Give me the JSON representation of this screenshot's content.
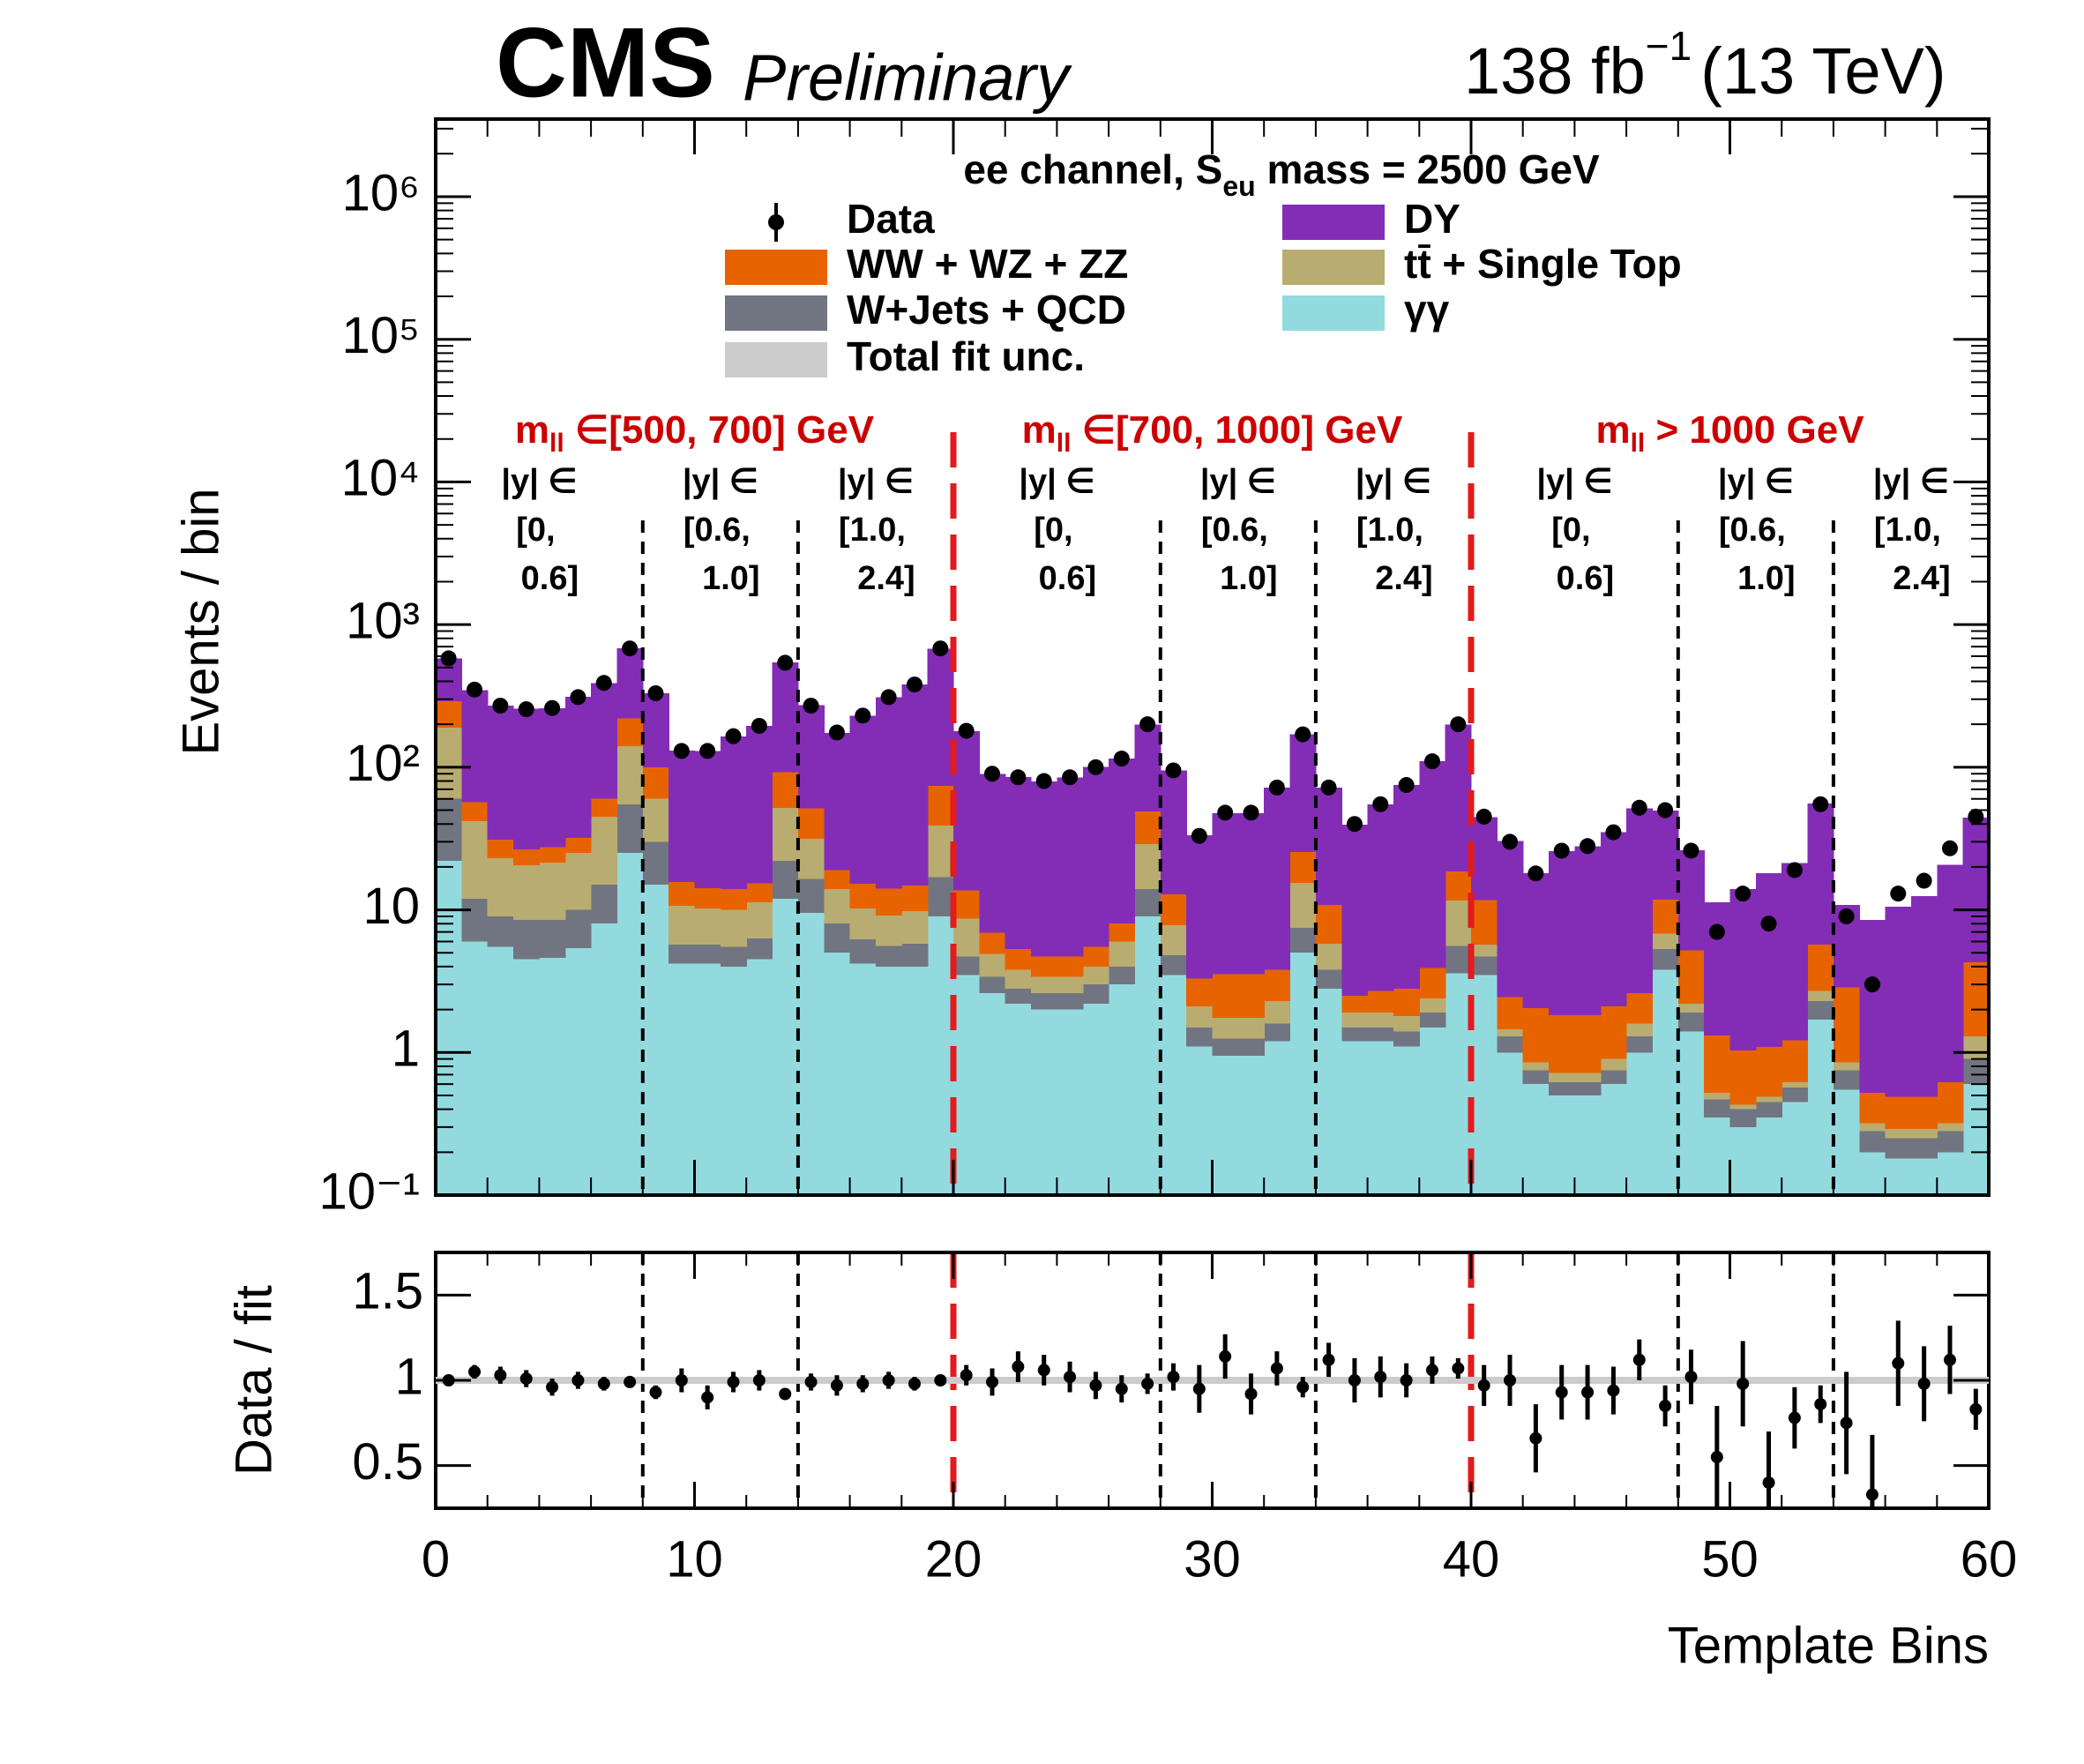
{
  "chart_data": [
    {
      "type": "stacked_histogram",
      "title": "CMS",
      "subtitle": "Preliminary",
      "lumi": "138 fb",
      "lumi_exp": "−1",
      "energy": "(13 TeV)",
      "legend_title": {
        "text": "ee channel, S",
        "sub": "eu",
        "rest": " mass = 2500 GeV"
      },
      "ylabel": "Events / bin",
      "log_scale": true,
      "ylim": [
        0.1,
        3500000
      ],
      "yticks": [
        {
          "value": 0.1,
          "label": "10⁻¹"
        },
        1,
        10,
        {
          "value": 100,
          "label": "10²"
        },
        {
          "value": 1000,
          "label": "10³"
        },
        {
          "value": 10000,
          "label": "10⁴"
        },
        {
          "value": 100000,
          "label": "10⁵"
        },
        {
          "value": 1000000,
          "label": "10⁶"
        }
      ],
      "xlim": [
        0,
        60
      ],
      "bins": [
        0,
        1,
        2,
        3,
        4,
        5,
        6,
        7,
        8,
        9,
        10,
        11,
        12,
        13,
        14,
        15,
        16,
        17,
        18,
        19,
        20,
        21,
        22,
        23,
        24,
        25,
        26,
        27,
        28,
        29,
        30,
        31,
        32,
        33,
        34,
        35,
        36,
        37,
        38,
        39,
        40,
        41,
        42,
        43,
        44,
        45,
        46,
        47,
        48,
        49,
        50,
        51,
        52,
        53,
        54,
        55,
        56,
        57,
        58,
        59,
        60
      ],
      "series": [
        {
          "name": "γγ",
          "color": "#93dadf",
          "values": [
            22,
            6,
            5.5,
            4.5,
            4.6,
            5.4,
            8,
            25,
            15,
            4.2,
            4.2,
            4,
            4.5,
            12,
            9.5,
            5,
            4.2,
            4,
            4,
            9,
            3.5,
            2.6,
            2.2,
            2,
            2,
            2.2,
            3,
            9,
            3.5,
            1.1,
            0.95,
            0.95,
            1.2,
            5,
            2.8,
            1.2,
            1.2,
            1.1,
            1.5,
            3.6,
            3.5,
            1,
            0.6,
            0.5,
            0.5,
            0.6,
            1,
            3.8,
            1.4,
            0.35,
            0.3,
            0.35,
            0.45,
            1.7,
            0.55,
            0.2,
            0.18,
            0.18,
            0.2,
            0.6
          ]
        },
        {
          "name": "W+Jets + QCD",
          "color": "#717581",
          "values": [
            38,
            6,
            3.5,
            4,
            3.9,
            4.6,
            7,
            30,
            15,
            1.5,
            1.5,
            1.5,
            1.8,
            10,
            7,
            3,
            2,
            1.6,
            1.8,
            8,
            1.2,
            0.8,
            0.6,
            0.6,
            0.6,
            0.8,
            1,
            5,
            1.3,
            0.4,
            0.3,
            0.3,
            0.4,
            2.5,
            1,
            0.3,
            0.3,
            0.3,
            0.4,
            2,
            1.2,
            0.3,
            0.15,
            0.12,
            0.12,
            0.15,
            0.3,
            1.5,
            0.5,
            0.12,
            0.1,
            0.1,
            0.12,
            0.6,
            0.2,
            0.08,
            0.07,
            0.07,
            0.08,
            0.3
          ]
        },
        {
          "name": "tt̄ + Single Top",
          "color": "#b9ac70",
          "values": [
            130,
            30,
            14,
            12,
            13,
            15,
            30,
            85,
            30,
            5,
            4.5,
            4.5,
            5,
            30,
            15,
            6,
            4,
            3.5,
            4,
            22,
            4,
            1.5,
            1,
            0.8,
            0.8,
            1,
            2,
            15,
            3,
            0.6,
            0.5,
            0.5,
            0.7,
            8,
            2,
            0.4,
            0.4,
            0.4,
            0.5,
            6,
            1,
            0.15,
            0.1,
            0.1,
            0.1,
            0.15,
            0.3,
            1.5,
            0.3,
            0.05,
            0.03,
            0.04,
            0.05,
            0.4,
            0.1,
            0.04,
            0.04,
            0.04,
            0.04,
            0.4
          ]
        },
        {
          "name": "WW + WZ + ZZ",
          "color": "#e76300",
          "values": [
            100,
            15,
            8,
            6,
            6,
            7,
            15,
            80,
            40,
            5,
            4,
            4,
            4,
            40,
            20,
            5,
            5,
            5,
            5,
            35,
            5,
            2,
            1.5,
            1.3,
            1.3,
            1.5,
            2,
            20,
            5,
            1.2,
            1.8,
            1.8,
            1.5,
            10,
            5,
            0.6,
            0.8,
            1,
            1.5,
            7,
            6,
            1,
            1.2,
            1.1,
            1.1,
            1.2,
            1,
            5,
            3,
            0.8,
            0.6,
            0.6,
            0.6,
            3,
            2,
            0.2,
            0.2,
            0.2,
            0.3,
            3
          ]
        },
        {
          "name": "DY",
          "color": "#832db6",
          "values": [
            290,
            290,
            240,
            230,
            232,
            280,
            330,
            460,
            230,
            115,
            116,
            150,
            180,
            450,
            220,
            155,
            215,
            295,
            365,
            605,
            165,
            83,
            80,
            75,
            80,
            95,
            107,
            150,
            82,
            30,
            44,
            44,
            68,
            145,
            61,
            37,
            52,
            72,
            106,
            180,
            33,
            28,
            16,
            24,
            26,
            33,
            49,
            38,
            21,
            10,
            13,
            17,
            20,
            50,
            8,
            8,
            10,
            12,
            20,
            40
          ]
        }
      ],
      "data": {
        "name": "Data",
        "color": "#000000",
        "values": [
          580,
          350,
          270,
          255,
          260,
          310,
          390,
          680,
          330,
          130,
          130,
          165,
          195,
          540,
          270,
          175,
          230,
          310,
          380,
          680,
          180,
          90,
          85,
          80,
          85,
          100,
          115,
          200,
          95,
          33,
          48,
          48,
          72,
          170,
          72,
          40,
          55,
          75,
          110,
          200,
          45,
          30,
          18,
          26,
          28,
          35,
          52,
          50,
          26,
          7,
          13,
          8,
          19,
          55,
          9,
          3,
          13,
          16,
          27,
          45
        ]
      },
      "uncertainty": {
        "name": "Total fit unc.",
        "color": "#cccccc"
      },
      "dividers": [
        8,
        14,
        20,
        28,
        34,
        40,
        48,
        54
      ],
      "divider_colors": [
        "#000000",
        "#000000",
        "#e41a1c",
        "#000000",
        "#000000",
        "#e41a1c",
        "#000000",
        "#000000"
      ],
      "region_labels": [
        {
          "symbol": "m",
          "sub": "ll",
          "text": " ∈[500, 700] GeV"
        },
        {
          "symbol": "m",
          "sub": "ll",
          "text": " ∈[700, 1000] GeV"
        },
        {
          "symbol": "m",
          "sub": "ll",
          "text": " > 1000 GeV"
        }
      ],
      "rapidity_labels": [
        [
          "|y| ∈",
          "[0,",
          "0.6]"
        ],
        [
          "|y| ∈",
          "[0.6,",
          "1.0]"
        ],
        [
          "|y| ∈",
          "[1.0,",
          "2.4]"
        ],
        [
          "|y| ∈",
          "[0,",
          "0.6]"
        ],
        [
          "|y| ∈",
          "[0.6,",
          "1.0]"
        ],
        [
          "|y| ∈",
          "[1.0,",
          "2.4]"
        ],
        [
          "|y| ∈",
          "[0,",
          "0.6]"
        ],
        [
          "|y| ∈",
          "[0.6,",
          "1.0]"
        ],
        [
          "|y| ∈",
          "[1.0,",
          "2.4]"
        ]
      ]
    },
    {
      "type": "scatter",
      "ylabel": "Data / fit",
      "xlabel": "Template Bins",
      "ylim": [
        0.25,
        1.75
      ],
      "yticks": [
        0.5,
        1,
        1.5
      ],
      "xlim": [
        0,
        60
      ],
      "xticks": [
        0,
        10,
        20,
        30,
        40,
        50,
        60
      ],
      "x": [
        0.5,
        1.5,
        2.5,
        3.5,
        4.5,
        5.5,
        6.5,
        7.5,
        8.5,
        9.5,
        10.5,
        11.5,
        12.5,
        13.5,
        14.5,
        15.5,
        16.5,
        17.5,
        18.5,
        19.5,
        20.5,
        21.5,
        22.5,
        23.5,
        24.5,
        25.5,
        26.5,
        27.5,
        28.5,
        29.5,
        30.5,
        31.5,
        32.5,
        33.5,
        34.5,
        35.5,
        36.5,
        37.5,
        38.5,
        39.5,
        40.5,
        41.5,
        42.5,
        43.5,
        44.5,
        45.5,
        46.5,
        47.5,
        48.5,
        49.5,
        50.5,
        51.5,
        52.5,
        53.5,
        54.5,
        55.5,
        56.5,
        57.5,
        58.5,
        59.5
      ],
      "values": [
        1.0,
        1.05,
        1.03,
        1.01,
        0.96,
        1.0,
        0.98,
        0.99,
        0.93,
        1.0,
        0.9,
        0.99,
        1.0,
        0.92,
        0.99,
        0.97,
        0.98,
        1.0,
        0.98,
        1.0,
        1.03,
        0.99,
        1.08,
        1.06,
        1.02,
        0.97,
        0.95,
        0.98,
        1.02,
        0.95,
        1.14,
        0.92,
        1.07,
        0.96,
        1.12,
        1.0,
        1.02,
        1.0,
        1.06,
        1.07,
        0.97,
        1.0,
        0.66,
        0.93,
        0.93,
        0.94,
        1.12,
        0.85,
        1.02,
        0.55,
        0.98,
        0.4,
        0.78,
        0.86,
        0.75,
        0.33,
        1.1,
        0.98,
        1.12,
        0.83
      ],
      "errors": [
        0.03,
        0.04,
        0.05,
        0.05,
        0.05,
        0.05,
        0.04,
        0.03,
        0.04,
        0.07,
        0.07,
        0.06,
        0.06,
        0.03,
        0.05,
        0.06,
        0.05,
        0.05,
        0.04,
        0.03,
        0.06,
        0.08,
        0.09,
        0.09,
        0.09,
        0.08,
        0.08,
        0.06,
        0.08,
        0.14,
        0.13,
        0.12,
        0.1,
        0.06,
        0.1,
        0.13,
        0.12,
        0.1,
        0.08,
        0.06,
        0.12,
        0.15,
        0.2,
        0.16,
        0.16,
        0.14,
        0.12,
        0.12,
        0.16,
        0.3,
        0.25,
        0.3,
        0.18,
        0.11,
        0.3,
        0.35,
        0.25,
        0.22,
        0.2,
        0.12
      ]
    }
  ]
}
